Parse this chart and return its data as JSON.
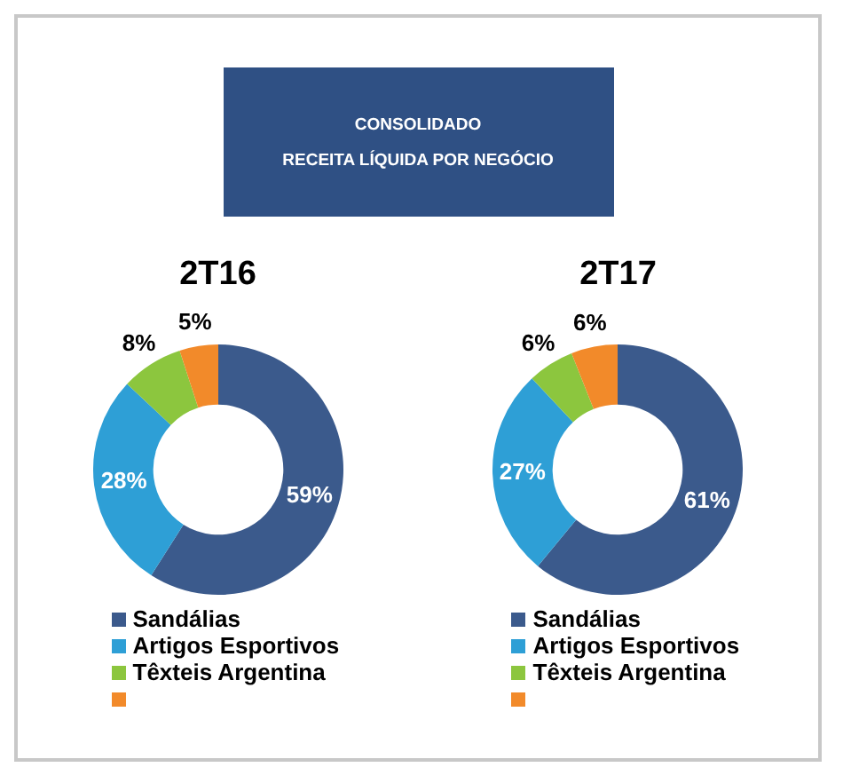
{
  "chart_data": [
    {
      "type": "other",
      "title": "CONSOLIDADO",
      "subtitle": "RECEITA LÍQUIDA POR NEGÓCIO"
    },
    {
      "type": "donut",
      "title": "2T16",
      "categories": [
        "Sandálias",
        "Artigos Esportivos",
        "Têxteis Argentina",
        null
      ],
      "values": [
        59,
        28,
        8,
        5
      ],
      "colors": [
        "#3b5a8c",
        "#2e9fd6",
        "#8cc63e",
        "#f28a2a"
      ],
      "value_labels": [
        "59%",
        "28%",
        "8%",
        "5%"
      ],
      "legend": "bottom"
    },
    {
      "type": "donut",
      "title": "2T17",
      "categories": [
        "Sandálias",
        "Artigos Esportivos",
        "Têxteis Argentina",
        null
      ],
      "values": [
        61,
        27,
        6,
        6
      ],
      "colors": [
        "#3b5a8c",
        "#2e9fd6",
        "#8cc63e",
        "#f28a2a"
      ],
      "value_labels": [
        "61%",
        "27%",
        "6%",
        "6%"
      ],
      "legend": "bottom"
    }
  ]
}
